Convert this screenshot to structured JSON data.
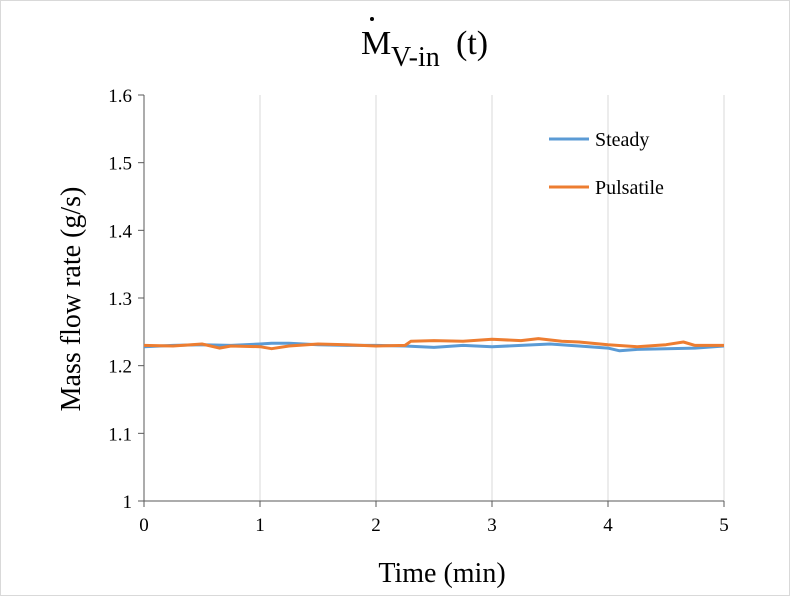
{
  "chart_data": {
    "type": "line",
    "title": {
      "symbol": "M",
      "subscript": "V-in",
      "suffix": "(t)"
    },
    "xlabel": "Time (min)",
    "ylabel": "Mass flow rate (g/s)",
    "xlim": [
      0,
      5
    ],
    "ylim": [
      1,
      1.6
    ],
    "x_ticks": [
      "0",
      "1",
      "2",
      "3",
      "4",
      "5"
    ],
    "y_ticks": [
      "1",
      "1.1",
      "1.2",
      "1.3",
      "1.4",
      "1.5",
      "1.6"
    ],
    "grid": "vertical",
    "legend_position": "top-right",
    "series": [
      {
        "name": "Steady",
        "color": "#5B9BD5",
        "x": [
          0,
          0.25,
          0.5,
          0.75,
          1,
          1.1,
          1.25,
          1.5,
          1.75,
          2,
          2.25,
          2.5,
          2.75,
          3,
          3.25,
          3.5,
          3.75,
          4,
          4.1,
          4.25,
          4.5,
          4.75,
          5
        ],
        "y": [
          1.228,
          1.23,
          1.231,
          1.23,
          1.232,
          1.233,
          1.233,
          1.231,
          1.23,
          1.23,
          1.229,
          1.227,
          1.23,
          1.228,
          1.23,
          1.232,
          1.229,
          1.226,
          1.222,
          1.224,
          1.225,
          1.226,
          1.229
        ]
      },
      {
        "name": "Pulsatile",
        "color": "#ED7D31",
        "x": [
          0,
          0.25,
          0.5,
          0.65,
          0.75,
          1,
          1.1,
          1.25,
          1.5,
          1.75,
          2,
          2.25,
          2.3,
          2.5,
          2.75,
          3,
          3.25,
          3.4,
          3.6,
          3.75,
          4,
          4.25,
          4.5,
          4.65,
          4.75,
          5
        ],
        "y": [
          1.23,
          1.229,
          1.232,
          1.226,
          1.229,
          1.228,
          1.225,
          1.229,
          1.232,
          1.231,
          1.229,
          1.23,
          1.236,
          1.237,
          1.236,
          1.239,
          1.237,
          1.24,
          1.236,
          1.235,
          1.231,
          1.228,
          1.231,
          1.235,
          1.23,
          1.23
        ]
      }
    ]
  }
}
